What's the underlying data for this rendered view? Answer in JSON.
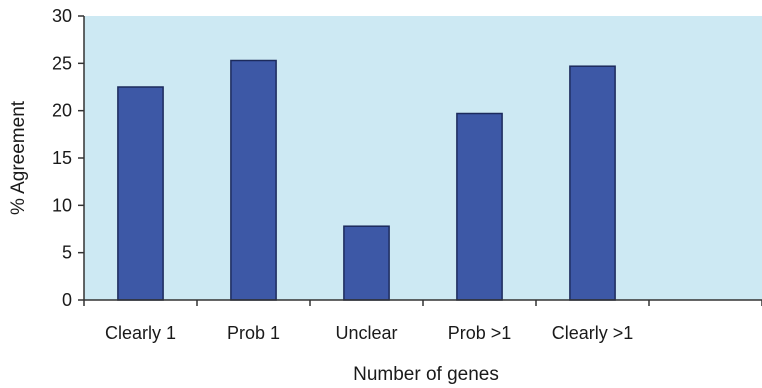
{
  "chart_data": {
    "type": "bar",
    "title": "",
    "xlabel": "Number of genes",
    "ylabel": "% Agreement",
    "categories": [
      "Clearly 1",
      "Prob 1",
      "Unclear",
      "Prob >1",
      "Clearly >1",
      ""
    ],
    "values": [
      22.5,
      25.3,
      7.8,
      19.7,
      24.7,
      null
    ],
    "ylim": [
      0,
      30
    ],
    "yticks": [
      0,
      5,
      10,
      15,
      20,
      25,
      30
    ],
    "grid": false,
    "legend": "none",
    "colors": {
      "bar": "#3d58a6",
      "bar_stroke": "#1c2a5c",
      "plot_background": "#cde9f3",
      "axis": "#333333"
    }
  }
}
